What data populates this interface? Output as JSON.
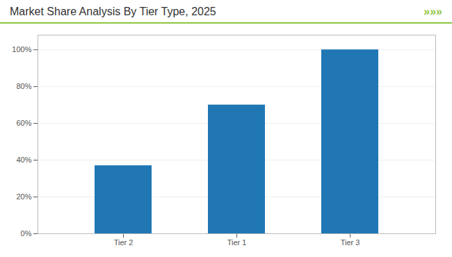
{
  "chart_data": {
    "type": "bar",
    "title": "Market Share Analysis By Tier Type, 2025",
    "annotations": [
      "»»»"
    ],
    "categories": [
      "Tier 2",
      "Tier 1",
      "Tier 3"
    ],
    "values": [
      37,
      70,
      100
    ],
    "color": "#2077B4",
    "ylim": [
      0,
      108
    ],
    "yticks": [
      {
        "value": 0,
        "label": "0%"
      },
      {
        "value": 20,
        "label": "20%"
      },
      {
        "value": 40,
        "label": "40%"
      },
      {
        "value": 60,
        "label": "60%"
      },
      {
        "value": 80,
        "label": "80%"
      },
      {
        "value": 100,
        "label": "100%"
      }
    ],
    "grid": true
  }
}
